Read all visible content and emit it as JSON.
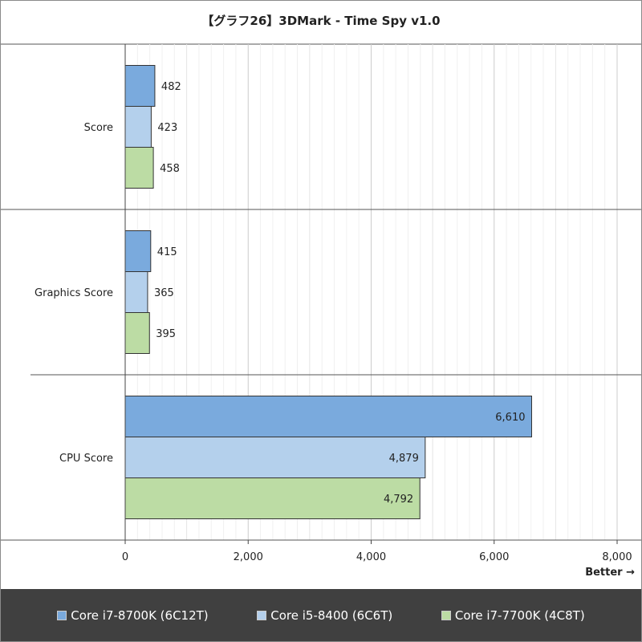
{
  "title": "【グラフ26】3DMark - Time Spy v1.0",
  "better_label": "Better →",
  "chart_data": {
    "type": "bar",
    "orientation": "horizontal",
    "title": "【グラフ26】3DMark - Time Spy v1.0",
    "categories": [
      "Score",
      "Graphics Score",
      "CPU Score"
    ],
    "series": [
      {
        "name": "Core i7-8700K (6C12T)",
        "color": "#7aaadd",
        "values": [
          482,
          415,
          6610
        ],
        "labels": [
          "482",
          "415",
          "6,610"
        ]
      },
      {
        "name": "Core i5-8400 (6C6T)",
        "color": "#b4d0ec",
        "values": [
          423,
          365,
          4879
        ],
        "labels": [
          "423",
          "365",
          "4,879"
        ]
      },
      {
        "name": "Core i7-7700K (4C8T)",
        "color": "#bcdca4",
        "values": [
          458,
          395,
          4792
        ],
        "labels": [
          "458",
          "395",
          "4,792"
        ]
      }
    ],
    "xlim": [
      0,
      8000
    ],
    "xticks": [
      0,
      2000,
      4000,
      6000,
      8000
    ],
    "xtick_labels": [
      "0",
      "2,000",
      "4,000",
      "6,000",
      "8,000"
    ],
    "minor_grid_step": 1000,
    "grid": true,
    "legend_position": "bottom"
  }
}
